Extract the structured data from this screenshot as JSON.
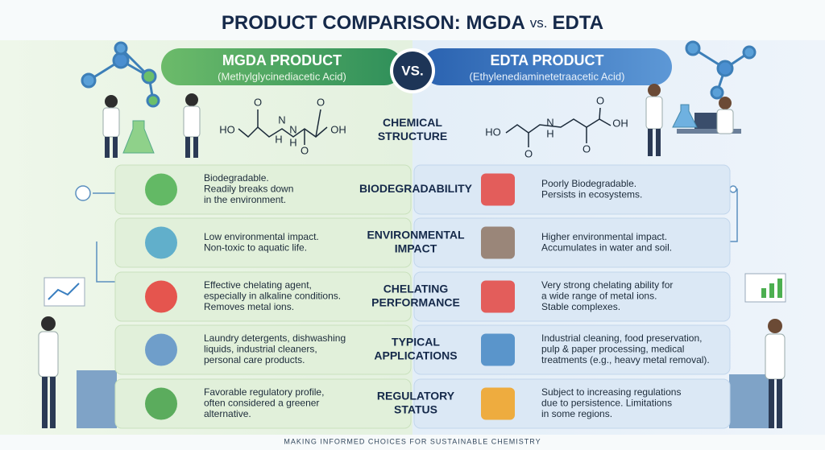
{
  "title_left": "PRODUCT COMPARISON: MGDA",
  "title_vs": "vs.",
  "title_right": "EDTA",
  "left_header": {
    "name": "MGDA PRODUCT",
    "subtitle": "(Methylglycinediacetic Acid)"
  },
  "vs": "VS.",
  "right_header": {
    "name": "EDTA PRODUCT",
    "subtitle": "(Ethylenediaminetetraacetic Acid)"
  },
  "structure": {
    "label": [
      "CHEMICAL",
      "STRUCTURE"
    ],
    "left_atoms": [
      "O",
      "HO",
      "N",
      "H",
      "H",
      "N",
      "O",
      "O",
      "OH"
    ],
    "right_atoms": [
      "O",
      "HO",
      "N",
      "H",
      "O",
      "O",
      "OH"
    ]
  },
  "rows": [
    {
      "label": [
        "BIODEGRADABILITY"
      ],
      "left": [
        "Biodegradable.",
        "Readily breaks down",
        "in the environment."
      ],
      "right": [
        "Poorly Biodegradable.",
        "Persists in ecosystems."
      ]
    },
    {
      "label": [
        "ENVIRONMENTAL",
        "IMPACT"
      ],
      "left": [
        "Low environmental impact.",
        "Non-toxic to aquatic life."
      ],
      "right": [
        "Higher environmental impact.",
        "Accumulates in water and soil."
      ]
    },
    {
      "label": [
        "CHELATING",
        "PERFORMANCE"
      ],
      "left": [
        "Effective chelating agent,",
        "especially in alkaline conditions.",
        "Removes metal ions."
      ],
      "right": [
        "Very strong chelating ability for",
        "a wide range of metal ions.",
        "Stable complexes."
      ]
    },
    {
      "label": [
        "TYPICAL",
        "APPLICATIONS"
      ],
      "left": [
        "Laundry detergents, dishwashing",
        "liquids, industrial cleaners,",
        "personal care products."
      ],
      "right": [
        "Industrial cleaning, food preservation,",
        "pulp & paper processing, medical",
        "treatments (e.g., heavy metal removal)."
      ]
    },
    {
      "label": [
        "REGULATORY",
        "STATUS"
      ],
      "left": [
        "Favorable regulatory profile,",
        "often considered a greener",
        "alternative."
      ],
      "right": [
        "Subject to increasing regulations",
        "due to persistence. Limitations",
        "in some regions."
      ]
    }
  ],
  "footer": "MAKING INFORMED CHOICES FOR SUSTAINABLE CHEMISTRY"
}
